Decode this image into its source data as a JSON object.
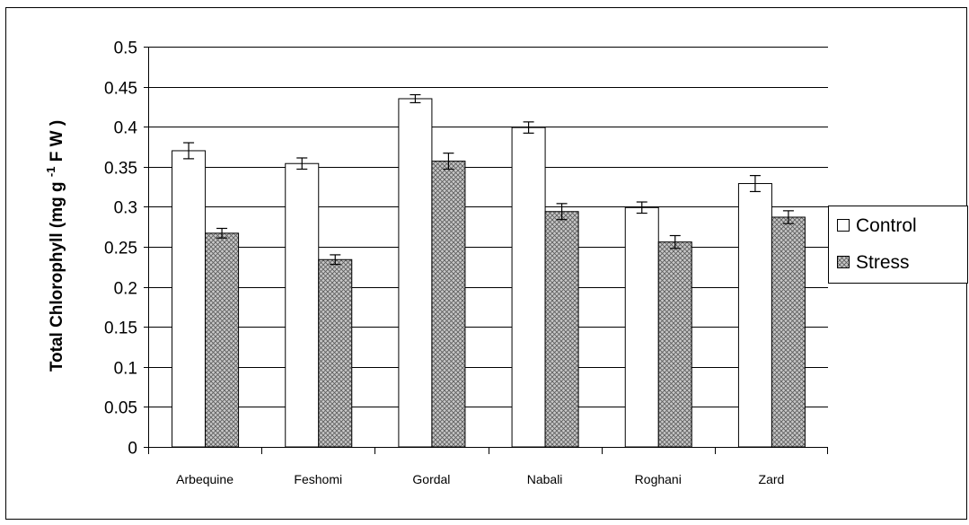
{
  "chart_data": {
    "type": "bar",
    "title": "",
    "xlabel": "",
    "ylabel": "Total Chlorophyll (mg g -1 F W )",
    "ylabel_parts": [
      "Total Chlorophyll (mg g ",
      "-1",
      " F W )"
    ],
    "ylim": [
      0,
      0.5
    ],
    "yticks": [
      "0",
      "0.05",
      "0.1",
      "0.15",
      "0.2",
      "0.25",
      "0.3",
      "0.35",
      "0.4",
      "0.45",
      "0.5"
    ],
    "grid": true,
    "legend_position": "right",
    "categories": [
      "Arbequine",
      "Feshomi",
      "Gordal",
      "Nabali",
      "Roghani",
      "Zard"
    ],
    "series": [
      {
        "name": "Control",
        "values": [
          0.37,
          0.354,
          0.435,
          0.399,
          0.299,
          0.329
        ],
        "errors": [
          0.01,
          0.007,
          0.005,
          0.007,
          0.007,
          0.01
        ],
        "pattern": "solid-white"
      },
      {
        "name": "Stress",
        "values": [
          0.267,
          0.234,
          0.357,
          0.294,
          0.256,
          0.287
        ],
        "errors": [
          0.006,
          0.006,
          0.01,
          0.01,
          0.008,
          0.008
        ],
        "pattern": "crosshatch"
      }
    ]
  }
}
